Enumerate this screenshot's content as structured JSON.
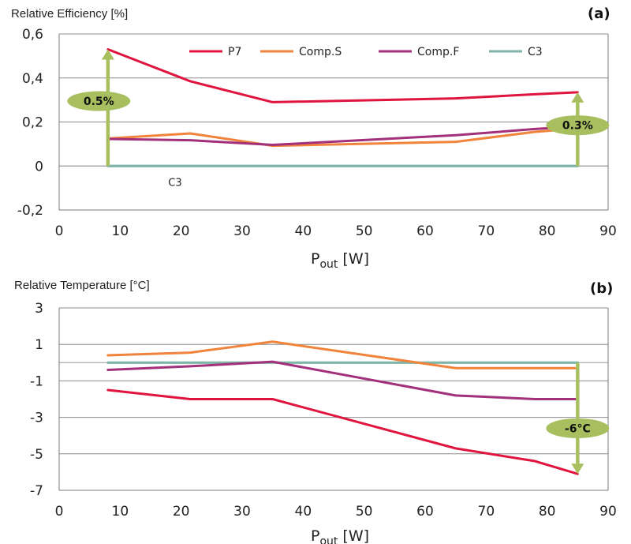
{
  "chart_data": [
    {
      "panel": "(a)",
      "type": "line",
      "title": "Relative Efficiency [%]",
      "xlabel": {
        "main": "P",
        "sub": "out",
        "rest": " [W]"
      },
      "xlim": [
        0,
        90
      ],
      "ylim": [
        -0.2,
        0.6
      ],
      "xticks": [
        0,
        10,
        20,
        30,
        40,
        50,
        60,
        70,
        80,
        90
      ],
      "yticks": [
        "-0,2",
        "0",
        "0,2",
        "0,4",
        "0,6"
      ],
      "ytick_values": [
        -0.2,
        0,
        0.2,
        0.4,
        0.6
      ],
      "grid": "horizontal",
      "legend_position": "top",
      "series": [
        {
          "name": "P7",
          "color": "#e0153f",
          "x": [
            8,
            21.5,
            35,
            65,
            78,
            85
          ],
          "y": [
            0.53,
            0.385,
            0.29,
            0.307,
            0.326,
            0.335
          ]
        },
        {
          "name": "Comp.S",
          "color": "#f0843c",
          "x": [
            8,
            21.5,
            35,
            65,
            78,
            85
          ],
          "y": [
            0.125,
            0.148,
            0.092,
            0.11,
            0.155,
            0.17
          ]
        },
        {
          "name": "Comp.F",
          "color": "#a3307a",
          "x": [
            8,
            21.5,
            35,
            65,
            78,
            85
          ],
          "y": [
            0.123,
            0.117,
            0.096,
            0.14,
            0.168,
            0.18
          ]
        },
        {
          "name": "C3",
          "color": "#7fb5a8",
          "x": [
            8,
            85
          ],
          "y": [
            0,
            0
          ]
        }
      ],
      "annotations": [
        {
          "text": "0.5%",
          "x": 8,
          "y_from": 0,
          "y_to": 0.53,
          "label_x": 6.5,
          "label_y": 0.295
        },
        {
          "text": "0.3%",
          "x": 85,
          "y_from": 0,
          "y_to": 0.335,
          "label_x": 85,
          "label_y": 0.185
        },
        {
          "text": "C3",
          "x": 19,
          "y": -0.04
        }
      ]
    },
    {
      "panel": "(b)",
      "type": "line",
      "title": "Relative Temperature [°C]",
      "xlabel": {
        "main": "P",
        "sub": "out",
        "rest": " [W]"
      },
      "xlim": [
        0,
        90
      ],
      "ylim": [
        -7,
        3
      ],
      "xticks": [
        0,
        10,
        20,
        30,
        40,
        50,
        60,
        70,
        80,
        90
      ],
      "yticks": [
        "-7",
        "-5",
        "-3",
        "-1",
        "1",
        "3"
      ],
      "ytick_values": [
        -7,
        -5,
        -3,
        -1,
        1,
        3
      ],
      "grid": "horizontal",
      "series": [
        {
          "name": "P7",
          "color": "#e0153f",
          "x": [
            8,
            21.5,
            35,
            65,
            78,
            85
          ],
          "y": [
            -1.5,
            -2.0,
            -2.0,
            -4.7,
            -5.4,
            -6.1
          ]
        },
        {
          "name": "Comp.S",
          "color": "#f0843c",
          "x": [
            8,
            21.5,
            35,
            65,
            78,
            85
          ],
          "y": [
            0.4,
            0.55,
            1.15,
            -0.3,
            -0.3,
            -0.3
          ]
        },
        {
          "name": "Comp.F",
          "color": "#a3307a",
          "x": [
            8,
            21.5,
            35,
            65,
            78,
            85
          ],
          "y": [
            -0.4,
            -0.2,
            0.05,
            -1.8,
            -2.0,
            -2.0
          ]
        },
        {
          "name": "C3",
          "color": "#7fb5a8",
          "x": [
            8,
            85
          ],
          "y": [
            0,
            0
          ]
        }
      ],
      "annotations": [
        {
          "text": "-6°C",
          "x": 85,
          "y_from": 0,
          "y_to": -6.1,
          "label_x": 85,
          "label_y": -3.6
        }
      ]
    }
  ]
}
